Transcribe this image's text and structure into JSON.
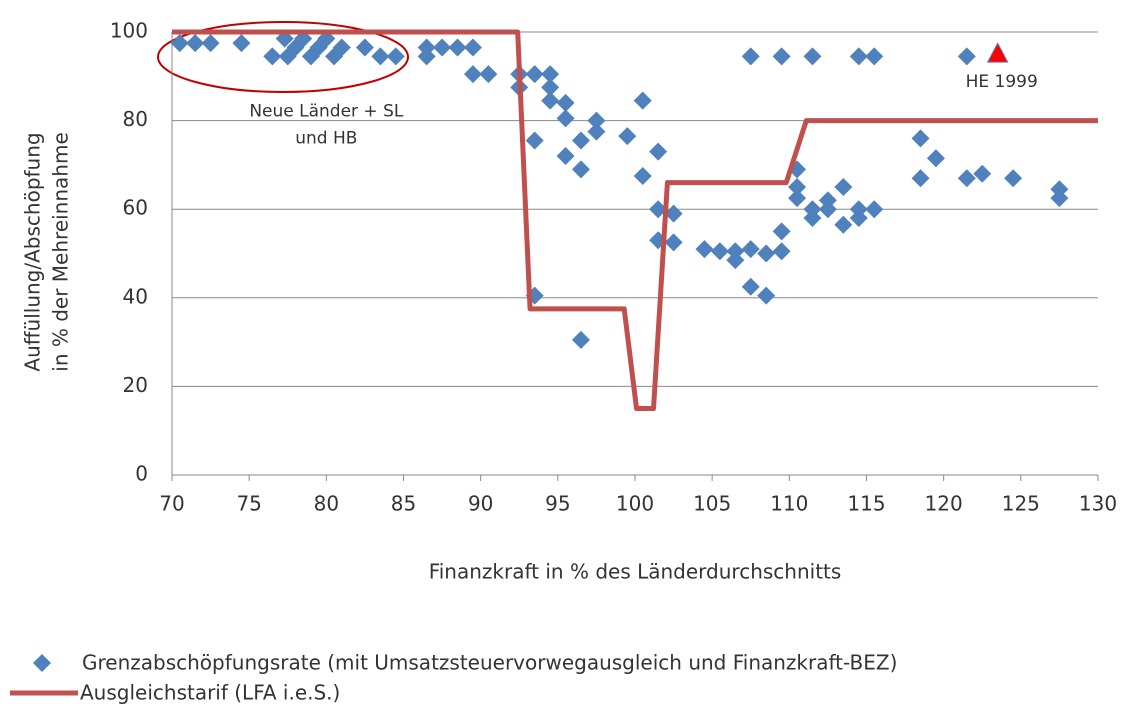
{
  "chart_data": {
    "type": "scatter",
    "ylabel": [
      "Auffüllung/Abschöpfung",
      "in % der Mehreinnahme"
    ],
    "xlabel": "Finanzkraft in % des Länderdurchschnitts",
    "xlim": [
      70,
      130
    ],
    "xticks": [
      70,
      75,
      80,
      85,
      90,
      95,
      100,
      105,
      110,
      115,
      120,
      125,
      130
    ],
    "ylim": [
      0,
      100
    ],
    "yticks": [
      0,
      20,
      40,
      60,
      80,
      100
    ],
    "grid": true,
    "annotations": [
      {
        "text": "Neue Länder + SL",
        "x": 80,
        "y": 82
      },
      {
        "text": "und HB",
        "x": 80,
        "y": 76
      }
    ],
    "series": [
      {
        "name": "Grenzabschöpfungsrate (mit Umsatzsteuervorwegausgleich  und Finanzkraft-BEZ)",
        "type": "scatter",
        "color": "#4f81bd",
        "x": [
          70.5,
          71.5,
          72.5,
          74.5,
          76.5,
          77.3,
          77.5,
          78,
          78.5,
          79,
          79.5,
          80,
          80.5,
          81,
          82.5,
          83.5,
          84.5,
          86.5,
          86.5,
          87.5,
          88.5,
          89.5,
          89.5,
          90.5,
          92.5,
          92.5,
          93.5,
          93.5,
          93.5,
          94.5,
          94.5,
          94.5,
          95.5,
          95.5,
          95.5,
          96.5,
          96.5,
          96.5,
          97.5,
          97.5,
          99.5,
          100.5,
          100.5,
          101.5,
          101.5,
          101.5,
          102.5,
          102.5,
          104.5,
          105.5,
          106.5,
          106.5,
          107.5,
          107.5,
          107.5,
          108.5,
          108.5,
          109.5,
          109.5,
          109.5,
          110.5,
          110.5,
          110.5,
          111.5,
          111.5,
          111.5,
          112.5,
          112.5,
          113.5,
          113.5,
          114.5,
          114.5,
          114.5,
          115.5,
          115.5,
          118.5,
          118.5,
          119.5,
          121.5,
          121.5,
          122.5,
          124.5,
          127.5,
          127.5
        ],
        "y": [
          97.5,
          97.5,
          97.5,
          97.5,
          94.5,
          98.5,
          94.5,
          96.5,
          98.5,
          94.5,
          96.5,
          98.5,
          94.5,
          96.5,
          96.5,
          94.5,
          94.5,
          96.5,
          94.5,
          96.5,
          96.5,
          96.5,
          90.5,
          90.5,
          90.5,
          87.5,
          90.5,
          75.5,
          40.5,
          90.5,
          87.5,
          84.5,
          84,
          80.5,
          72,
          75.5,
          69,
          30.5,
          80,
          77.5,
          76.5,
          84.5,
          67.5,
          73,
          60,
          53,
          59,
          52.5,
          51,
          50.5,
          50.5,
          48.5,
          51,
          42.5,
          94.5,
          50,
          40.5,
          55,
          50.5,
          94.5,
          69,
          65,
          62.5,
          60,
          58,
          94.5,
          62,
          60,
          65,
          56.5,
          60,
          58,
          94.5,
          60,
          94.5,
          76,
          67,
          71.5,
          67,
          94.5,
          68,
          67,
          64.5,
          62.5
        ]
      },
      {
        "name": "Ausgleichstarif (LFA i.e.S.)",
        "type": "line",
        "color": "#c0504d",
        "x": [
          70,
          92.4,
          93.2,
          99.3,
          100.1,
          101.2,
          102.1,
          109.8,
          111.1,
          130
        ],
        "y": [
          100,
          100,
          37.5,
          37.5,
          15,
          15,
          66,
          66,
          80,
          80
        ]
      }
    ],
    "highlight": {
      "label": "HE 1999",
      "x": 123.5,
      "y": 95,
      "color": "#ff0000"
    }
  }
}
